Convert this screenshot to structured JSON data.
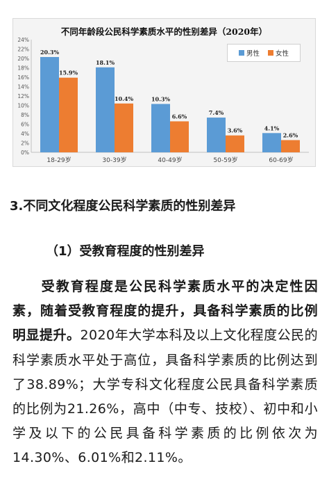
{
  "chart_data": {
    "type": "bar",
    "title": "不同年龄段公民科学素质水平的性别差异（2020年）",
    "categories": [
      "18-29岁",
      "30-39岁",
      "40-49岁",
      "50-59岁",
      "60-69岁"
    ],
    "series": [
      {
        "name": "男性",
        "values": [
          20.3,
          18.1,
          10.3,
          7.4,
          4.1
        ],
        "labels": [
          "20.3%",
          "18.1%",
          "10.3%",
          "7.4%",
          "4.1%"
        ],
        "color": "#5b9bd5"
      },
      {
        "name": "女性",
        "values": [
          15.9,
          10.4,
          6.6,
          3.6,
          2.6
        ],
        "labels": [
          "15.9%",
          "10.4%",
          "6.6%",
          "3.6%",
          "2.6%"
        ],
        "color": "#ed7d31"
      }
    ],
    "ylim": [
      0,
      24
    ],
    "yticks": [
      "0%",
      "2%",
      "4%",
      "6%",
      "8%",
      "10%",
      "12%",
      "14%",
      "16%",
      "18%",
      "20%",
      "22%",
      "24%"
    ],
    "grid": false,
    "legend_position": "top-right",
    "xlabel": "",
    "ylabel": ""
  },
  "article": {
    "section_heading": "3.不同文化程度公民科学素质的性别差异",
    "sub_heading": "（1）受教育程度的性别差异",
    "bold_lead": "受教育程度是公民科学素质水平的决定性因素，随着受教育程度的提升，具备科学素质的比例明显提升。",
    "body": "2020年大学本科及以上文化程度公民的科学素质水平处于高位，具备科学素质的比例达到了38.89%；大学专科文化程度公民具备科学素质的比例为21.26%，高中（中专、技校）、初中和小学及以下的公民具备科学素质的比例依次为14.30%、6.01%和2.11%。"
  }
}
